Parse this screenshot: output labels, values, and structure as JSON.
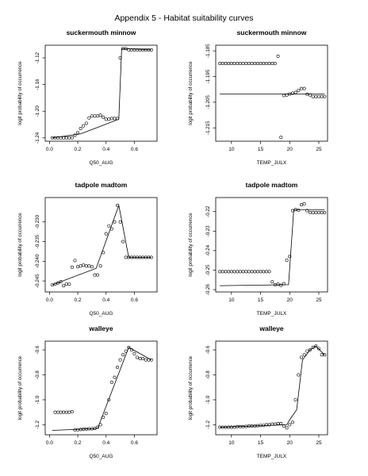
{
  "page": {
    "title": "Appendix 5 - Habitat suitability curves"
  },
  "chart_data": [
    {
      "type": "scatter",
      "title": "suckermouth minnow",
      "xlabel": "Q50_AUG",
      "ylabel": "logit probability of occurrence",
      "xlim": [
        -0.03,
        0.76
      ],
      "ylim": [
        -1.245,
        -1.101
      ],
      "xticks": [
        "0.0",
        "0.2",
        "0.4",
        "0.6"
      ],
      "yticks": [
        "-1.24",
        "-1.20",
        "-1.16",
        "-1.12"
      ],
      "points": {
        "x": [
          0.02,
          0.04,
          0.06,
          0.08,
          0.1,
          0.12,
          0.14,
          0.16,
          0.18,
          0.2,
          0.22,
          0.24,
          0.26,
          0.28,
          0.3,
          0.32,
          0.34,
          0.36,
          0.38,
          0.4,
          0.42,
          0.44,
          0.46,
          0.48,
          0.5,
          0.52,
          0.54,
          0.56,
          0.58,
          0.6,
          0.62,
          0.64,
          0.66,
          0.68,
          0.7,
          0.72
        ],
        "y": [
          -1.24,
          -1.24,
          -1.24,
          -1.24,
          -1.24,
          -1.24,
          -1.24,
          -1.24,
          -1.236,
          -1.232,
          -1.226,
          -1.222,
          -1.218,
          -1.21,
          -1.207,
          -1.207,
          -1.207,
          -1.206,
          -1.209,
          -1.212,
          -1.212,
          -1.211,
          -1.211,
          -1.211,
          -1.12,
          -1.106,
          -1.106,
          -1.108,
          -1.108,
          -1.108,
          -1.108,
          -1.108,
          -1.108,
          -1.108,
          -1.108,
          -1.108
        ]
      },
      "fit": {
        "x": [
          0.02,
          0.22,
          0.49,
          0.51,
          0.72
        ],
        "y": [
          -1.24,
          -1.234,
          -1.212,
          -1.106,
          -1.108
        ]
      }
    },
    {
      "type": "scatter",
      "title": "suckermouth minnow",
      "xlabel": "TEMP_JULX",
      "ylabel": "logit probability of occurrence",
      "xlim": [
        7.3,
        26.5
      ],
      "ylim": [
        -1.2202,
        -1.1828
      ],
      "xticks": [
        "10",
        "15",
        "20",
        "25"
      ],
      "yticks": [
        "-1.185",
        "-1.195",
        "-1.205",
        "-1.215"
      ],
      "points": {
        "x": [
          8.0,
          8.5,
          9.0,
          9.5,
          10.0,
          10.5,
          11.0,
          11.5,
          12.0,
          12.5,
          13.0,
          13.5,
          14.0,
          14.5,
          15.0,
          15.5,
          16.0,
          16.5,
          17.0,
          17.5,
          18.0,
          18.5,
          19.0,
          19.5,
          20.0,
          20.5,
          21.0,
          21.5,
          22.0,
          22.5,
          23.0,
          23.5,
          24.0,
          24.5,
          25.0,
          25.5,
          26.0
        ],
        "y": [
          -1.1899,
          -1.1899,
          -1.1899,
          -1.1899,
          -1.1899,
          -1.1899,
          -1.1899,
          -1.1899,
          -1.1899,
          -1.1899,
          -1.1899,
          -1.1899,
          -1.1899,
          -1.1899,
          -1.1899,
          -1.1899,
          -1.1899,
          -1.1899,
          -1.1899,
          -1.1899,
          -1.1871,
          -1.2187,
          -1.2024,
          -1.2022,
          -1.2018,
          -1.2015,
          -1.2012,
          -1.2004,
          -1.1997,
          -1.1997,
          -1.2019,
          -1.2022,
          -1.2028,
          -1.2028,
          -1.2028,
          -1.2028,
          -1.2028
        ]
      },
      "fit": {
        "x": [
          8.0,
          26.0
        ],
        "y": [
          -1.2018,
          -1.2018
        ]
      }
    },
    {
      "type": "scatter",
      "title": "tadpole madtom",
      "xlabel": "Q50_AUG",
      "ylabel": "logit probability of occurrence",
      "xlim": [
        -0.03,
        0.76
      ],
      "ylim": [
        -0.2478,
        -0.2238
      ],
      "xticks": [
        "0.0",
        "0.2",
        "0.4",
        "0.6"
      ],
      "yticks": [
        "-0.245",
        "-0.240",
        "-0.235",
        "-0.230"
      ],
      "points": {
        "x": [
          0.02,
          0.04,
          0.06,
          0.08,
          0.1,
          0.12,
          0.14,
          0.16,
          0.18,
          0.2,
          0.22,
          0.24,
          0.26,
          0.28,
          0.3,
          0.32,
          0.34,
          0.36,
          0.38,
          0.4,
          0.42,
          0.44,
          0.46,
          0.48,
          0.5,
          0.52,
          0.54,
          0.56,
          0.58,
          0.6,
          0.62,
          0.64,
          0.66,
          0.68,
          0.7,
          0.72
        ],
        "y": [
          -0.246,
          -0.2458,
          -0.2455,
          -0.2452,
          -0.2462,
          -0.2458,
          -0.2458,
          -0.2415,
          -0.2398,
          -0.2414,
          -0.2412,
          -0.241,
          -0.2412,
          -0.2412,
          -0.2414,
          -0.2435,
          -0.2435,
          -0.2412,
          -0.2378,
          -0.233,
          -0.231,
          -0.2318,
          -0.23,
          -0.2258,
          -0.23,
          -0.235,
          -0.239,
          -0.239,
          -0.239,
          -0.239,
          -0.239,
          -0.239,
          -0.239,
          -0.239,
          -0.239,
          -0.239
        ]
      },
      "fit": {
        "x": [
          0.02,
          0.33,
          0.49,
          0.56,
          0.72
        ],
        "y": [
          -0.246,
          -0.2418,
          -0.2258,
          -0.239,
          -0.239
        ]
      }
    },
    {
      "type": "scatter",
      "title": "tadpole madtom",
      "xlabel": "TEMP_JULX",
      "ylabel": "logit probability of occurrence",
      "xlim": [
        7.3,
        26.5
      ],
      "ylim": [
        -0.2612,
        -0.2128
      ],
      "xticks": [
        "10",
        "15",
        "20",
        "25"
      ],
      "yticks": [
        "-0.26",
        "-0.25",
        "-0.24",
        "-0.23",
        "-0.22"
      ],
      "points": {
        "x": [
          8.0,
          8.5,
          9.0,
          9.5,
          10.0,
          10.5,
          11.0,
          11.5,
          12.0,
          12.5,
          13.0,
          13.5,
          14.0,
          14.5,
          15.0,
          15.5,
          16.0,
          16.5,
          17.0,
          17.5,
          18.0,
          18.5,
          19.0,
          19.5,
          20.0,
          20.5,
          21.0,
          21.5,
          22.0,
          22.5,
          23.0,
          23.5,
          24.0,
          24.5,
          25.0,
          25.5,
          26.0
        ],
        "y": [
          -0.2508,
          -0.2508,
          -0.2508,
          -0.2508,
          -0.2508,
          -0.2508,
          -0.2508,
          -0.2508,
          -0.2508,
          -0.2508,
          -0.2508,
          -0.2508,
          -0.2508,
          -0.2508,
          -0.2508,
          -0.2508,
          -0.2508,
          -0.2508,
          -0.256,
          -0.2575,
          -0.2572,
          -0.2578,
          -0.257,
          -0.245,
          -0.243,
          -0.2195,
          -0.219,
          -0.2193,
          -0.2165,
          -0.216,
          -0.2195,
          -0.2205,
          -0.2205,
          -0.2205,
          -0.2205,
          -0.2205,
          -0.2205
        ]
      },
      "fit": {
        "x": [
          8.0,
          19.8,
          20.7,
          26.0
        ],
        "y": [
          -0.258,
          -0.2575,
          -0.219,
          -0.219
        ]
      }
    },
    {
      "type": "scatter",
      "title": "walleye",
      "xlabel": "Q50_AUG",
      "ylabel": "logit probability of occurrence",
      "xlim": [
        -0.03,
        0.76
      ],
      "ylim": [
        -1.28,
        -0.53
      ],
      "xticks": [
        "0.0",
        "0.2",
        "0.4",
        "0.6"
      ],
      "yticks": [
        "-1.2",
        "-1.0",
        "-0.8",
        "-0.6"
      ],
      "points": {
        "x": [
          0.04,
          0.06,
          0.08,
          0.1,
          0.12,
          0.14,
          0.16,
          0.18,
          0.2,
          0.22,
          0.24,
          0.26,
          0.28,
          0.3,
          0.32,
          0.34,
          0.36,
          0.38,
          0.4,
          0.42,
          0.44,
          0.46,
          0.48,
          0.5,
          0.52,
          0.54,
          0.56,
          0.58,
          0.6,
          0.62,
          0.64,
          0.66,
          0.68,
          0.7,
          0.72
        ],
        "y": [
          -1.1,
          -1.1,
          -1.1,
          -1.1,
          -1.1,
          -1.1,
          -1.095,
          -1.24,
          -1.24,
          -1.238,
          -1.235,
          -1.235,
          -1.232,
          -1.232,
          -1.23,
          -1.22,
          -1.2,
          -1.14,
          -1.11,
          -1.0,
          -0.86,
          -0.82,
          -0.74,
          -0.68,
          -0.64,
          -0.61,
          -0.58,
          -0.6,
          -0.63,
          -0.66,
          -0.67,
          -0.67,
          -0.68,
          -0.68,
          -0.68
        ]
      },
      "fit": {
        "x": [
          0.02,
          0.34,
          0.56,
          0.72
        ],
        "y": [
          -1.245,
          -1.23,
          -0.58,
          -0.68
        ]
      }
    },
    {
      "type": "scatter",
      "title": "walleye",
      "xlabel": "TEMP_JULX",
      "ylabel": "logit probability of occurrence",
      "xlim": [
        7.3,
        26.5
      ],
      "ylim": [
        -1.28,
        -0.53
      ],
      "xticks": [
        "10",
        "15",
        "20",
        "25"
      ],
      "yticks": [
        "-1.2",
        "-1.0",
        "-0.8",
        "-0.6"
      ],
      "points": {
        "x": [
          8.0,
          8.5,
          9.0,
          9.5,
          10.0,
          10.5,
          11.0,
          11.5,
          12.0,
          12.5,
          13.0,
          13.5,
          14.0,
          14.5,
          15.0,
          15.5,
          16.0,
          16.5,
          17.0,
          17.5,
          18.0,
          18.5,
          19.0,
          19.5,
          20.0,
          20.5,
          21.0,
          21.5,
          22.0,
          22.5,
          23.0,
          23.5,
          24.0,
          24.5,
          25.0,
          25.5,
          26.0
        ],
        "y": [
          -1.22,
          -1.22,
          -1.22,
          -1.22,
          -1.22,
          -1.22,
          -1.215,
          -1.215,
          -1.215,
          -1.213,
          -1.21,
          -1.21,
          -1.21,
          -1.208,
          -1.205,
          -1.205,
          -1.2,
          -1.2,
          -1.195,
          -1.195,
          -1.19,
          -1.19,
          -1.21,
          -1.225,
          -1.2,
          -1.18,
          -1.0,
          -0.8,
          -0.66,
          -0.64,
          -0.61,
          -0.6,
          -0.58,
          -0.57,
          -0.59,
          -0.64,
          -0.64
        ]
      },
      "fit": {
        "x": [
          8.0,
          19.5,
          20.0,
          21.2,
          22.2,
          23.5,
          24.5,
          26.0
        ],
        "y": [
          -1.22,
          -1.2,
          -1.16,
          -1.08,
          -0.68,
          -0.6,
          -0.57,
          -0.64
        ]
      }
    }
  ]
}
